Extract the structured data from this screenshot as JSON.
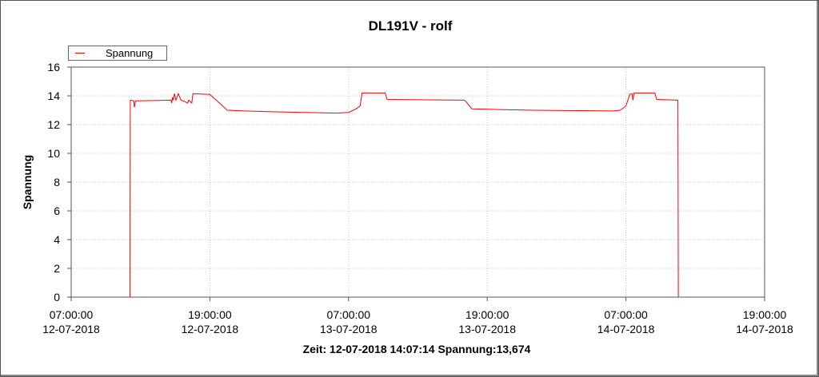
{
  "window": {
    "title": "DL191V - rolf",
    "status_text": "Zeit: 12-07-2018 14:07:14 Spannung:13,674"
  },
  "legend": {
    "label": "Spannung",
    "color": "#ff0000"
  },
  "chart_data": {
    "type": "line",
    "title": "DL191V - rolf",
    "xlabel": "",
    "ylabel": "Spannung",
    "ylim": [
      0,
      16
    ],
    "yticks": [
      0,
      2,
      4,
      6,
      8,
      10,
      12,
      14,
      16
    ],
    "xlim": [
      "2018-07-12 07:00:00",
      "2018-07-14 19:00:00"
    ],
    "xticks": [
      {
        "time": "07:00:00",
        "date": "12-07-2018"
      },
      {
        "time": "19:00:00",
        "date": "12-07-2018"
      },
      {
        "time": "07:00:00",
        "date": "13-07-2018"
      },
      {
        "time": "19:00:00",
        "date": "13-07-2018"
      },
      {
        "time": "07:00:00",
        "date": "14-07-2018"
      },
      {
        "time": "19:00:00",
        "date": "14-07-2018"
      }
    ],
    "grid": true,
    "legend_position": "top-left",
    "series": [
      {
        "name": "Spannung",
        "color": "#ff0000",
        "points": [
          [
            "2018-07-12 12:05",
            0.0
          ],
          [
            "2018-07-12 12:06",
            8.8
          ],
          [
            "2018-07-12 12:07",
            13.7
          ],
          [
            "2018-07-12 12:25",
            13.65
          ],
          [
            "2018-07-12 12:28",
            13.2
          ],
          [
            "2018-07-12 12:34",
            13.65
          ],
          [
            "2018-07-12 14:07",
            13.674
          ],
          [
            "2018-07-12 15:38",
            13.7
          ],
          [
            "2018-07-12 15:42",
            13.5
          ],
          [
            "2018-07-12 15:46",
            13.9
          ],
          [
            "2018-07-12 15:50",
            13.7
          ],
          [
            "2018-07-12 15:56",
            14.15
          ],
          [
            "2018-07-12 16:04",
            13.7
          ],
          [
            "2018-07-12 16:16",
            14.15
          ],
          [
            "2018-07-12 16:30",
            13.7
          ],
          [
            "2018-07-12 16:50",
            13.6
          ],
          [
            "2018-07-12 17:04",
            13.5
          ],
          [
            "2018-07-12 17:10",
            13.7
          ],
          [
            "2018-07-12 17:26",
            13.5
          ],
          [
            "2018-07-12 17:32",
            14.15
          ],
          [
            "2018-07-12 19:00",
            14.1
          ],
          [
            "2018-07-12 19:50",
            13.5
          ],
          [
            "2018-07-12 20:30",
            13.0
          ],
          [
            "2018-07-12 22:00",
            12.95
          ],
          [
            "2018-07-13 00:00",
            12.9
          ],
          [
            "2018-07-13 03:00",
            12.85
          ],
          [
            "2018-07-13 06:00",
            12.8
          ],
          [
            "2018-07-13 07:00",
            12.85
          ],
          [
            "2018-07-13 07:40",
            13.1
          ],
          [
            "2018-07-13 08:00",
            13.3
          ],
          [
            "2018-07-13 08:10",
            14.2
          ],
          [
            "2018-07-13 10:10",
            14.2
          ],
          [
            "2018-07-13 10:20",
            13.75
          ],
          [
            "2018-07-13 14:00",
            13.72
          ],
          [
            "2018-07-13 17:00",
            13.7
          ],
          [
            "2018-07-13 17:10",
            13.6
          ],
          [
            "2018-07-13 17:40",
            13.1
          ],
          [
            "2018-07-13 20:00",
            13.05
          ],
          [
            "2018-07-13 23:00",
            13.0
          ],
          [
            "2018-07-14 06:00",
            12.95
          ],
          [
            "2018-07-14 06:30",
            13.0
          ],
          [
            "2018-07-14 07:00",
            13.3
          ],
          [
            "2018-07-14 07:20",
            14.1
          ],
          [
            "2018-07-14 07:32",
            14.15
          ],
          [
            "2018-07-14 07:36",
            13.7
          ],
          [
            "2018-07-14 07:42",
            14.2
          ],
          [
            "2018-07-14 09:30",
            14.2
          ],
          [
            "2018-07-14 09:40",
            13.75
          ],
          [
            "2018-07-14 11:30",
            13.7
          ],
          [
            "2018-07-14 11:32",
            0.0
          ]
        ]
      }
    ]
  }
}
